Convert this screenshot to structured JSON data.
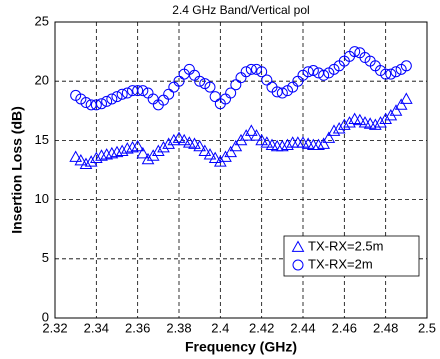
{
  "chart_data": {
    "type": "scatter",
    "title": "2.4 GHz Band/Vertical pol",
    "x_label": "Frequency (GHz)",
    "y_label": "Insertion Loss (dB)",
    "x": [
      2.33,
      2.3325,
      2.335,
      2.3375,
      2.34,
      2.3425,
      2.345,
      2.3475,
      2.35,
      2.3525,
      2.355,
      2.3575,
      2.36,
      2.3625,
      2.365,
      2.3675,
      2.37,
      2.3725,
      2.375,
      2.3775,
      2.38,
      2.3825,
      2.385,
      2.3875,
      2.39,
      2.3925,
      2.395,
      2.3975,
      2.4,
      2.4025,
      2.405,
      2.4075,
      2.41,
      2.4125,
      2.415,
      2.4175,
      2.42,
      2.4225,
      2.425,
      2.4275,
      2.43,
      2.4325,
      2.435,
      2.4375,
      2.44,
      2.4425,
      2.445,
      2.4475,
      2.45,
      2.4525,
      2.455,
      2.4575,
      2.46,
      2.4625,
      2.465,
      2.4675,
      2.47,
      2.4725,
      2.475,
      2.4775,
      2.48,
      2.4825,
      2.485,
      2.4875,
      2.49
    ],
    "series": [
      {
        "name": "TX-RX=2.5m",
        "color": "#0000ff",
        "marker": "triangle",
        "values": [
          13.6,
          13.3,
          13.0,
          13.2,
          13.5,
          13.7,
          13.8,
          13.9,
          14.0,
          14.1,
          14.3,
          14.4,
          14.5,
          13.9,
          13.4,
          13.7,
          14.1,
          14.4,
          14.7,
          15.0,
          15.2,
          15.0,
          14.8,
          14.7,
          14.5,
          14.1,
          13.8,
          13.5,
          13.2,
          13.6,
          14.0,
          14.5,
          15.0,
          15.4,
          15.8,
          15.4,
          15.0,
          14.8,
          14.6,
          14.5,
          14.5,
          14.6,
          14.8,
          14.8,
          14.8,
          14.7,
          14.6,
          14.6,
          14.7,
          15.2,
          15.8,
          16.0,
          16.3,
          16.5,
          16.8,
          16.7,
          16.5,
          16.4,
          16.3,
          16.5,
          16.8,
          17.1,
          17.5,
          18.0,
          18.5
        ]
      },
      {
        "name": "TX-RX=2m",
        "color": "#0000ff",
        "marker": "circle",
        "values": [
          18.8,
          18.5,
          18.2,
          18.0,
          18.0,
          18.1,
          18.3,
          18.5,
          18.7,
          18.9,
          19.0,
          19.2,
          19.2,
          19.2,
          19.0,
          18.5,
          18.0,
          18.4,
          18.9,
          19.5,
          20.0,
          20.6,
          21.0,
          20.5,
          20.0,
          19.8,
          19.5,
          18.7,
          18.1,
          18.5,
          19.0,
          19.7,
          20.3,
          20.8,
          21.0,
          21.0,
          20.8,
          20.1,
          19.5,
          19.1,
          19.0,
          19.2,
          19.5,
          20.0,
          20.5,
          20.8,
          20.9,
          20.7,
          20.5,
          20.7,
          21.0,
          21.3,
          21.7,
          22.1,
          22.5,
          22.4,
          22.0,
          21.7,
          21.3,
          20.9,
          20.6,
          20.6,
          20.8,
          21.0,
          21.3
        ]
      }
    ],
    "xlim": [
      2.32,
      2.5
    ],
    "xticks": [
      2.32,
      2.34,
      2.36,
      2.38,
      2.4,
      2.42,
      2.44,
      2.46,
      2.48,
      2.5
    ],
    "ylim": [
      0,
      25
    ],
    "yticks": [
      0,
      5,
      10,
      15,
      20,
      25
    ],
    "grid": true,
    "legend": "lower right"
  }
}
